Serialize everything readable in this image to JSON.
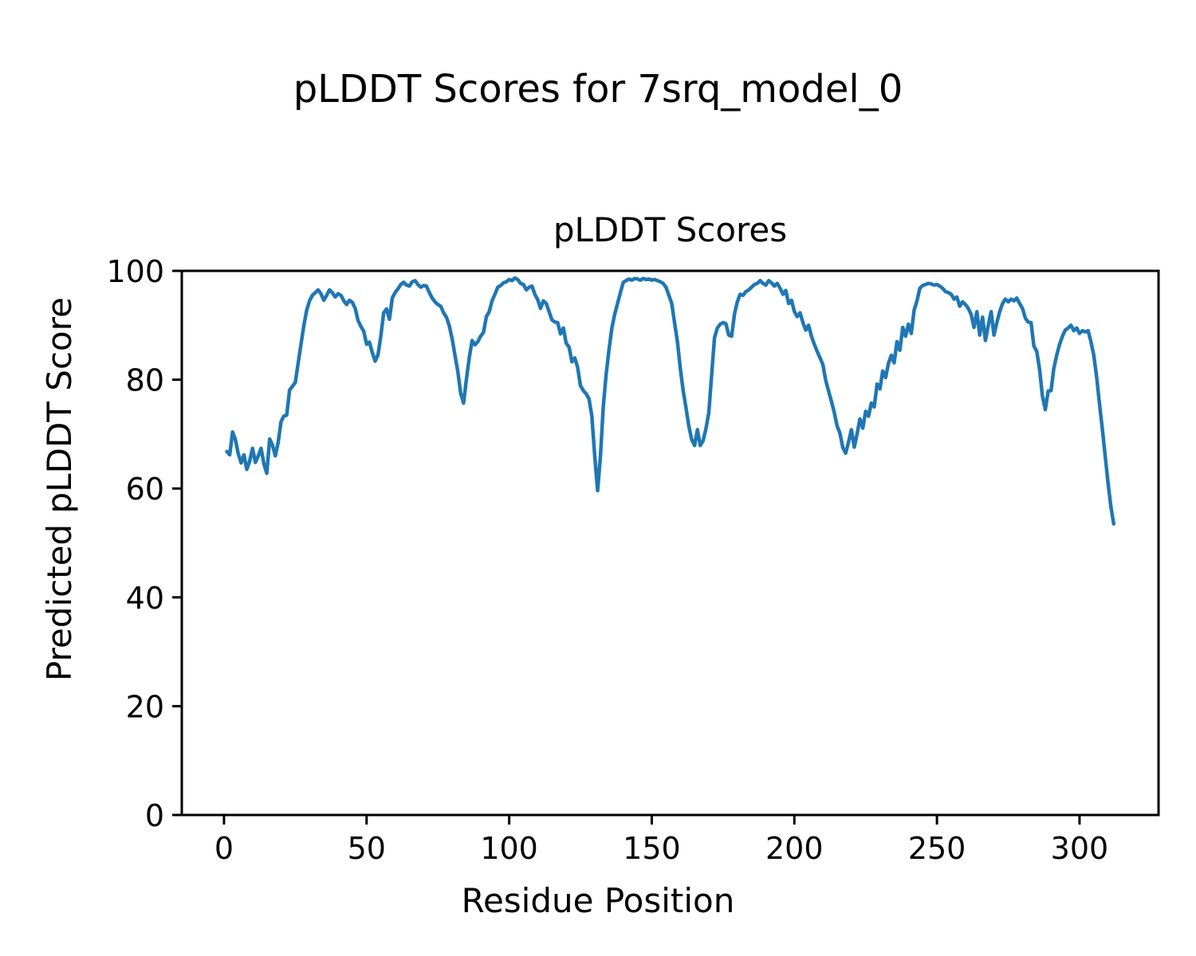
{
  "figure": {
    "title": "pLDDT Scores for 7srq_model_0",
    "background": "#ffffff"
  },
  "axes": {
    "title": "pLDDT Scores",
    "xlabel": "Residue Position",
    "ylabel": "Predicted pLDDT Score",
    "spine_color": "#000000",
    "tick_color": "#000000",
    "grid": false
  },
  "chart_data": {
    "type": "line",
    "title": "pLDDT Scores",
    "suptitle": "pLDDT Scores for 7srq_model_0",
    "xlabel": "Residue Position",
    "ylabel": "Predicted pLDDT Score",
    "xlim": [
      -14.8,
      327.7
    ],
    "ylim": [
      0,
      100
    ],
    "xticks": [
      0,
      50,
      100,
      150,
      200,
      250,
      300
    ],
    "yticks": [
      0,
      20,
      40,
      60,
      80,
      100
    ],
    "grid": false,
    "legend": false,
    "series": [
      {
        "name": "pLDDT",
        "color": "#1f77b4",
        "x_start": 1,
        "x_step": 1,
        "y": [
          66.8,
          66.2,
          70.4,
          69.0,
          66.4,
          64.7,
          66.2,
          63.5,
          65.0,
          67.4,
          64.8,
          66.0,
          67.4,
          64.5,
          62.8,
          69.1,
          68.0,
          66.0,
          68.5,
          72.3,
          73.3,
          73.5,
          78.1,
          78.8,
          79.5,
          83.0,
          86.5,
          90.0,
          92.8,
          94.5,
          95.5,
          96.0,
          96.5,
          95.8,
          94.6,
          95.5,
          96.5,
          96.0,
          95.2,
          95.8,
          95.5,
          94.5,
          93.8,
          94.6,
          94.2,
          93.1,
          90.9,
          89.8,
          88.9,
          86.5,
          86.9,
          85.0,
          83.4,
          84.6,
          88.0,
          92.3,
          93.0,
          91.1,
          95.0,
          96.0,
          96.7,
          97.5,
          97.9,
          97.4,
          97.2,
          98.0,
          98.2,
          97.5,
          97.0,
          97.3,
          97.2,
          96.0,
          95.0,
          94.3,
          93.8,
          93.5,
          92.3,
          91.5,
          89.9,
          87.5,
          84.5,
          81.5,
          77.5,
          75.7,
          80.0,
          84.0,
          87.2,
          86.4,
          87.0,
          88.0,
          88.7,
          91.6,
          92.5,
          94.5,
          95.7,
          97.0,
          97.3,
          97.8,
          98.0,
          98.4,
          98.2,
          98.7,
          98.4,
          97.7,
          97.5,
          96.5,
          97.0,
          97.2,
          95.7,
          94.7,
          93.1,
          94.5,
          94.0,
          92.5,
          91.0,
          90.6,
          90.5,
          88.4,
          89.5,
          86.7,
          86.0,
          83.3,
          84.0,
          82.3,
          78.9,
          78.0,
          77.4,
          76.5,
          73.3,
          66.0,
          59.6,
          66.0,
          75.0,
          81.0,
          85.5,
          89.5,
          92.0,
          94.0,
          96.0,
          97.9,
          98.2,
          98.5,
          98.3,
          98.6,
          98.5,
          98.3,
          98.6,
          98.4,
          98.5,
          98.3,
          98.4,
          98.2,
          98.0,
          97.7,
          97.0,
          95.5,
          94.0,
          90.5,
          87.0,
          82.1,
          78.0,
          74.8,
          71.5,
          69.0,
          67.9,
          70.8,
          67.9,
          68.8,
          71.0,
          74.0,
          80.8,
          87.7,
          89.5,
          90.2,
          90.5,
          90.3,
          88.2,
          88.0,
          92.1,
          94.3,
          95.7,
          95.5,
          96.2,
          96.5,
          97.0,
          97.5,
          97.7,
          98.2,
          97.7,
          97.4,
          98.2,
          97.8,
          97.2,
          97.7,
          96.8,
          95.7,
          96.4,
          94.0,
          94.6,
          92.5,
          91.6,
          92.3,
          90.5,
          89.1,
          90.0,
          88.0,
          86.5,
          85.2,
          84.0,
          82.8,
          79.9,
          77.9,
          76.0,
          74.0,
          71.5,
          70.1,
          67.5,
          66.5,
          68.5,
          70.8,
          67.6,
          70.0,
          72.8,
          71.1,
          74.2,
          73.3,
          75.7,
          75.0,
          79.2,
          78.3,
          81.6,
          80.4,
          83.0,
          84.5,
          83.1,
          87.0,
          85.4,
          89.6,
          88.0,
          90.2,
          88.5,
          92.8,
          94.5,
          96.8,
          97.3,
          97.5,
          97.7,
          97.6,
          97.4,
          97.5,
          97.2,
          96.8,
          96.2,
          96.0,
          95.7,
          94.8,
          95.2,
          93.5,
          94.3,
          93.8,
          93.1,
          92.0,
          89.6,
          92.5,
          88.2,
          91.5,
          87.2,
          90.0,
          92.5,
          88.2,
          90.5,
          92.5,
          94.0,
          94.8,
          94.3,
          94.8,
          94.5,
          95.0,
          94.0,
          93.1,
          91.3,
          90.6,
          90.5,
          86.2,
          85.2,
          81.8,
          77.0,
          74.5,
          77.9,
          78.0,
          82.1,
          84.5,
          86.5,
          88.0,
          89.1,
          89.5,
          90.0,
          89.0,
          89.5,
          88.5,
          89.0,
          88.8,
          89.0,
          87.0,
          84.5,
          80.5,
          75.5,
          71.0,
          66.0,
          61.0,
          56.6,
          53.5
        ]
      }
    ]
  },
  "layout_note": ""
}
